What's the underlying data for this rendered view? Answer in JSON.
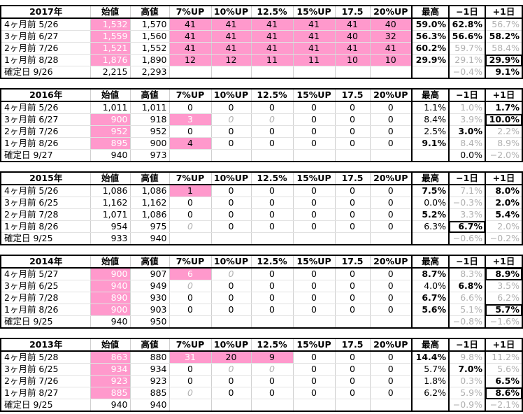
{
  "columns": [
    "始値",
    "高値",
    "7%UP",
    "10%UP",
    "12.5%",
    "15%UP",
    "17.5",
    "20%UP",
    "最高",
    "−1日",
    "+1日"
  ],
  "blocks": [
    {
      "year": "2017年",
      "rows": [
        {
          "label": "4ヶ月前 5/26",
          "v": [
            "1,532",
            "1,570",
            "41",
            "41",
            "41",
            "41",
            "41",
            "40",
            "59.0%",
            "62.8%",
            "56.7%"
          ]
        },
        {
          "label": "3ヶ月前 6/27",
          "v": [
            "1,559",
            "1,560",
            "41",
            "41",
            "41",
            "41",
            "40",
            "32",
            "56.3%",
            "56.6%",
            "58.2%"
          ]
        },
        {
          "label": "2ヶ月前 7/26",
          "v": [
            "1,521",
            "1,552",
            "41",
            "41",
            "41",
            "41",
            "41",
            "41",
            "60.2%",
            "59.7%",
            "58.4%"
          ]
        },
        {
          "label": "1ヶ月前 8/28",
          "v": [
            "1,876",
            "1,890",
            "12",
            "12",
            "11",
            "11",
            "10",
            "10",
            "29.9%",
            "29.1%",
            "29.9%"
          ]
        },
        {
          "label": "確定日 9/26",
          "v": [
            "2,215",
            "2,293",
            "",
            "",
            "",
            "",
            "",
            "",
            "",
            "−0.4%",
            "9.1%"
          ]
        }
      ]
    },
    {
      "year": "2016年",
      "rows": [
        {
          "label": "4ヶ月前 5/26",
          "v": [
            "1,011",
            "1,011",
            "0",
            "0",
            "0",
            "0",
            "0",
            "0",
            "1.1%",
            "1.0%",
            "1.7%"
          ]
        },
        {
          "label": "3ヶ月前 6/27",
          "v": [
            "900",
            "918",
            "3",
            "0",
            "0",
            "0",
            "0",
            "0",
            "8.4%",
            "3.9%",
            "10.0%"
          ]
        },
        {
          "label": "2ヶ月前 7/26",
          "v": [
            "952",
            "952",
            "0",
            "0",
            "0",
            "0",
            "0",
            "0",
            "2.5%",
            "3.0%",
            "2.2%"
          ]
        },
        {
          "label": "1ヶ月前 8/26",
          "v": [
            "895",
            "900",
            "4",
            "0",
            "0",
            "0",
            "0",
            "0",
            "9.1%",
            "8.4%",
            "8.9%"
          ]
        },
        {
          "label": "確定日 9/27",
          "v": [
            "940",
            "973",
            "",
            "",
            "",
            "",
            "",
            "",
            "",
            "0.0%",
            "−2.0%"
          ]
        }
      ]
    },
    {
      "year": "2015年",
      "rows": [
        {
          "label": "4ヶ月前 5/26",
          "v": [
            "1,086",
            "1,086",
            "1",
            "0",
            "0",
            "0",
            "0",
            "0",
            "7.5%",
            "7.1%",
            "8.0%"
          ]
        },
        {
          "label": "3ヶ月前 6/25",
          "v": [
            "1,162",
            "1,162",
            "0",
            "0",
            "0",
            "0",
            "0",
            "0",
            "0.0%",
            "−0.3%",
            "2.0%"
          ]
        },
        {
          "label": "2ヶ月前 7/28",
          "v": [
            "1,071",
            "1,086",
            "0",
            "0",
            "0",
            "0",
            "0",
            "0",
            "5.2%",
            "3.3%",
            "5.4%"
          ]
        },
        {
          "label": "1ヶ月前 8/26",
          "v": [
            "954",
            "975",
            "0",
            "0",
            "0",
            "0",
            "0",
            "0",
            "6.3%",
            "6.7%",
            "2.0%"
          ]
        },
        {
          "label": "確定日 9/25",
          "v": [
            "933",
            "940",
            "",
            "",
            "",
            "",
            "",
            "",
            "",
            "−0.6%",
            "−0.2%"
          ]
        }
      ]
    },
    {
      "year": "2014年",
      "rows": [
        {
          "label": "4ヶ月前 5/27",
          "v": [
            "900",
            "907",
            "6",
            "0",
            "0",
            "0",
            "0",
            "0",
            "8.7%",
            "8.3%",
            "8.9%"
          ]
        },
        {
          "label": "3ヶ月前 6/25",
          "v": [
            "940",
            "949",
            "0",
            "0",
            "0",
            "0",
            "0",
            "0",
            "4.0%",
            "6.8%",
            "3.5%"
          ]
        },
        {
          "label": "2ヶ月前 7/28",
          "v": [
            "890",
            "930",
            "0",
            "0",
            "0",
            "0",
            "0",
            "0",
            "6.7%",
            "6.6%",
            "6.2%"
          ]
        },
        {
          "label": "1ヶ月前 8/26",
          "v": [
            "900",
            "903",
            "0",
            "0",
            "0",
            "0",
            "0",
            "0",
            "5.6%",
            "5.1%",
            "5.7%"
          ]
        },
        {
          "label": "確定日 9/25",
          "v": [
            "940",
            "950",
            "",
            "",
            "",
            "",
            "",
            "",
            "",
            "−0.8%",
            "−1.6%"
          ]
        }
      ]
    },
    {
      "year": "2013年",
      "rows": [
        {
          "label": "4ヶ月前 5/28",
          "v": [
            "863",
            "880",
            "31",
            "20",
            "9",
            "0",
            "0",
            "0",
            "14.4%",
            "9.8%",
            "11.2%"
          ]
        },
        {
          "label": "3ヶ月前 6/25",
          "v": [
            "934",
            "934",
            "0",
            "0",
            "0",
            "0",
            "0",
            "0",
            "5.7%",
            "7.0%",
            "5.6%"
          ]
        },
        {
          "label": "2ヶ月前 7/26",
          "v": [
            "923",
            "923",
            "0",
            "0",
            "0",
            "0",
            "0",
            "0",
            "1.8%",
            "0.3%",
            "6.5%"
          ]
        },
        {
          "label": "1ヶ月前 8/27",
          "v": [
            "885",
            "885",
            "0",
            "0",
            "0",
            "0",
            "0",
            "0",
            "6.2%",
            "5.9%",
            "8.6%"
          ]
        },
        {
          "label": "確定日 9/25",
          "v": [
            "940",
            "940",
            "",
            "",
            "",
            "",
            "",
            "",
            "",
            "−0.9%",
            "−2.1%"
          ]
        }
      ]
    }
  ],
  "colors": {
    "highlight": "#ff99cc",
    "muted": "#b0b0b0",
    "border": "#000000"
  }
}
